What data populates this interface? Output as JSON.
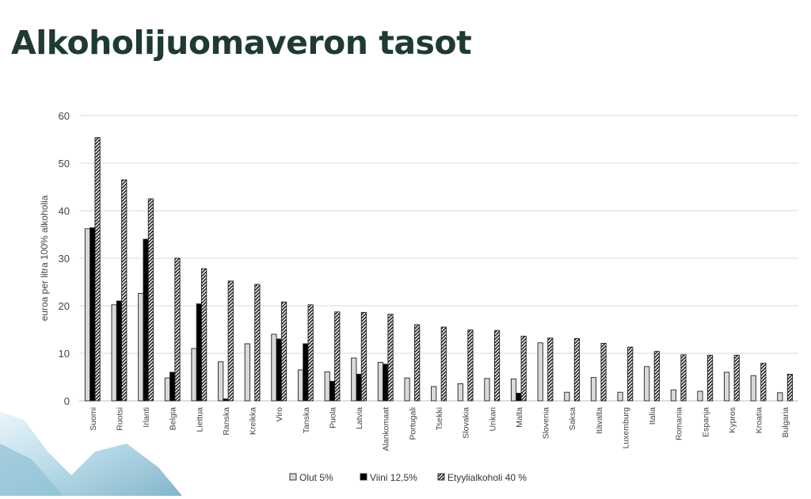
{
  "title": "Alkoholijuomaveron tasot",
  "chart_data": {
    "type": "bar",
    "title": "",
    "xlabel": "",
    "ylabel": "euroa per litra 100% alkoholia",
    "ylim": [
      0,
      60
    ],
    "yticks": [
      0,
      10,
      20,
      30,
      40,
      50,
      60
    ],
    "grid": true,
    "legend_position": "bottom",
    "categories": [
      "Suomi",
      "Ruotsi",
      "Irlanti",
      "Belgia",
      "Liettua",
      "Ranska",
      "Kreikka",
      "Viro",
      "Tanska",
      "Puola",
      "Latvia",
      "Alankomaat",
      "Portugali",
      "Tsekki",
      "Slovakia",
      "Unkari",
      "Malta",
      "Slovenia",
      "Saksa",
      "Itävalta",
      "Luxemburg",
      "Italia",
      "Romania",
      "Espanja",
      "Kypros",
      "Kroatia",
      "Bulgaria"
    ],
    "series": [
      {
        "name": "Olut 5%",
        "fill": "#d9d9d9",
        "values": [
          36.2,
          20.2,
          22.6,
          4.8,
          11.0,
          8.2,
          12.0,
          14.0,
          6.5,
          6.1,
          9.0,
          8.1,
          4.8,
          3.0,
          3.6,
          4.7,
          4.6,
          12.2,
          1.8,
          4.9,
          1.8,
          7.2,
          2.3,
          2.0,
          6.0,
          5.3,
          1.7
        ]
      },
      {
        "name": "Viini 12,5%",
        "fill": "#000000",
        "values": [
          36.4,
          21.0,
          34.0,
          6.0,
          20.4,
          0.4,
          0,
          13.0,
          12.0,
          4.1,
          5.6,
          7.7,
          0,
          0,
          0,
          0,
          1.6,
          0,
          0,
          0,
          0,
          0,
          0,
          0,
          0,
          0,
          0
        ]
      },
      {
        "name": "Etyylialkoholi 40 %",
        "fill": "hatched",
        "values": [
          55.4,
          46.5,
          42.5,
          30.0,
          27.8,
          25.2,
          24.5,
          20.8,
          20.2,
          18.7,
          18.6,
          18.2,
          16.0,
          15.5,
          14.9,
          14.8,
          13.6,
          13.2,
          13.1,
          12.1,
          11.3,
          10.4,
          9.7,
          9.6,
          9.6,
          7.9,
          5.6
        ]
      }
    ]
  }
}
